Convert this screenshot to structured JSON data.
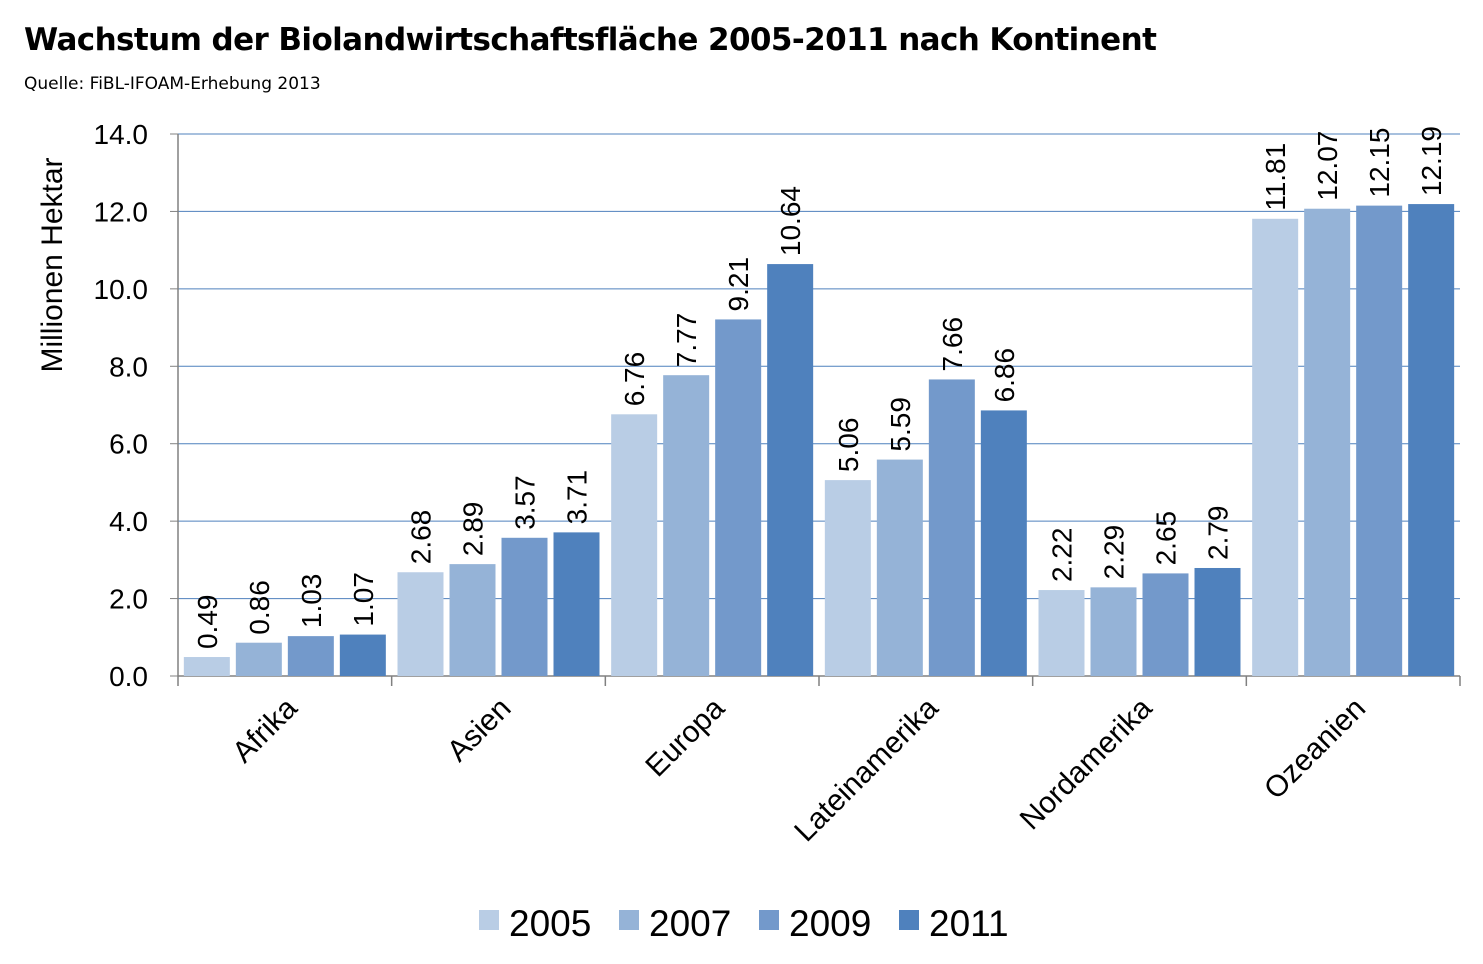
{
  "chart_data": {
    "type": "bar",
    "title": "Wachstum der Biolandwirtschaftsfläche 2005-2011 nach Kontinent",
    "subtitle": "Quelle: FiBL-IFOAM-Erhebung 2013",
    "ylabel": "Millionen Hektar",
    "xlabel": "",
    "ylim": [
      0,
      14
    ],
    "yticks": [
      "0.0",
      "2.0",
      "4.0",
      "6.0",
      "8.0",
      "10.0",
      "12.0",
      "14.0"
    ],
    "grid": true,
    "legend_position": "bottom",
    "categories": [
      "Afrika",
      "Asien",
      "Europa",
      "Lateinamerika",
      "Nordamerika",
      "Ozeanien"
    ],
    "series": [
      {
        "name": "2005",
        "color": "#b9cde5",
        "values": [
          0.49,
          2.68,
          6.76,
          5.06,
          2.22,
          11.81
        ],
        "labels": [
          "0.49",
          "2.68",
          "6.76",
          "5.06",
          "2.22",
          "11.81"
        ]
      },
      {
        "name": "2007",
        "color": "#95b3d7",
        "values": [
          0.86,
          2.89,
          7.77,
          5.59,
          2.29,
          12.07
        ],
        "labels": [
          "0.86",
          "2.89",
          "7.77",
          "5.59",
          "2.29",
          "12.07"
        ]
      },
      {
        "name": "2009",
        "color": "#7399cb",
        "values": [
          1.03,
          3.57,
          9.21,
          7.66,
          2.65,
          12.15
        ],
        "labels": [
          "1.03",
          "3.57",
          "9.21",
          "7.66",
          "2.65",
          "12.15"
        ]
      },
      {
        "name": "2011",
        "color": "#4f81bd",
        "values": [
          1.07,
          3.71,
          10.64,
          6.86,
          2.79,
          12.19
        ],
        "labels": [
          "1.07",
          "3.71",
          "10.64",
          "6.86",
          "2.79",
          "12.19"
        ]
      }
    ]
  }
}
